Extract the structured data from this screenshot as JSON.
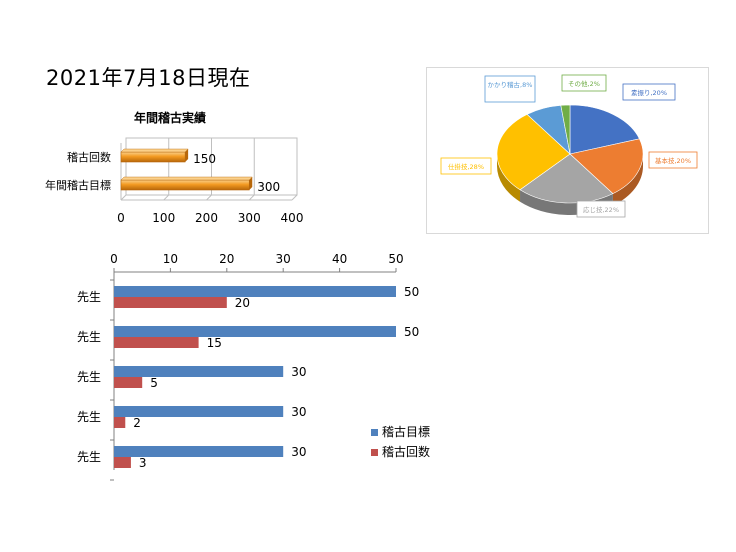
{
  "page_title": "2021年7月18日現在",
  "chart_data": [
    {
      "type": "bar",
      "orientation": "horizontal",
      "title": "年間稽古実績",
      "categories": [
        "稽古回数",
        "年間稽古目標"
      ],
      "values": [
        150,
        300
      ],
      "data_labels": [
        "150",
        "300"
      ],
      "xlim": [
        0,
        400
      ],
      "x_ticks": [
        "0",
        "100",
        "200",
        "300",
        "400"
      ],
      "grid": true,
      "colors": {
        "bar": "#f39a21",
        "bar_dark": "#b7670a"
      }
    },
    {
      "type": "pie",
      "style": "3d",
      "slices": [
        {
          "label": "素振り,20%",
          "value": 20,
          "color": "#4472c4"
        },
        {
          "label": "基本技,20%",
          "value": 20,
          "color": "#ed7d31"
        },
        {
          "label": "応じ技,22%",
          "value": 22,
          "color": "#a5a5a5"
        },
        {
          "label": "仕掛技,28%",
          "value": 28,
          "color": "#ffc000"
        },
        {
          "label": "かかり稽古,8%",
          "value": 8,
          "color": "#5b9bd5"
        },
        {
          "label": "その他,2%",
          "value": 2,
          "color": "#70ad47"
        }
      ]
    },
    {
      "type": "bar",
      "orientation": "horizontal",
      "categories": [
        "先生",
        "先生",
        "先生",
        "先生",
        "先生"
      ],
      "series": [
        {
          "name": "稽古目標",
          "values": [
            50,
            50,
            30,
            30,
            30
          ],
          "color": "#4f81bd"
        },
        {
          "name": "稽古回数",
          "values": [
            20,
            15,
            5,
            2,
            3
          ],
          "color": "#c0504d"
        }
      ],
      "xlim": [
        0,
        50
      ],
      "x_ticks": [
        "0",
        "10",
        "20",
        "30",
        "40",
        "50"
      ],
      "axis_position": "top",
      "legend": "right"
    }
  ]
}
